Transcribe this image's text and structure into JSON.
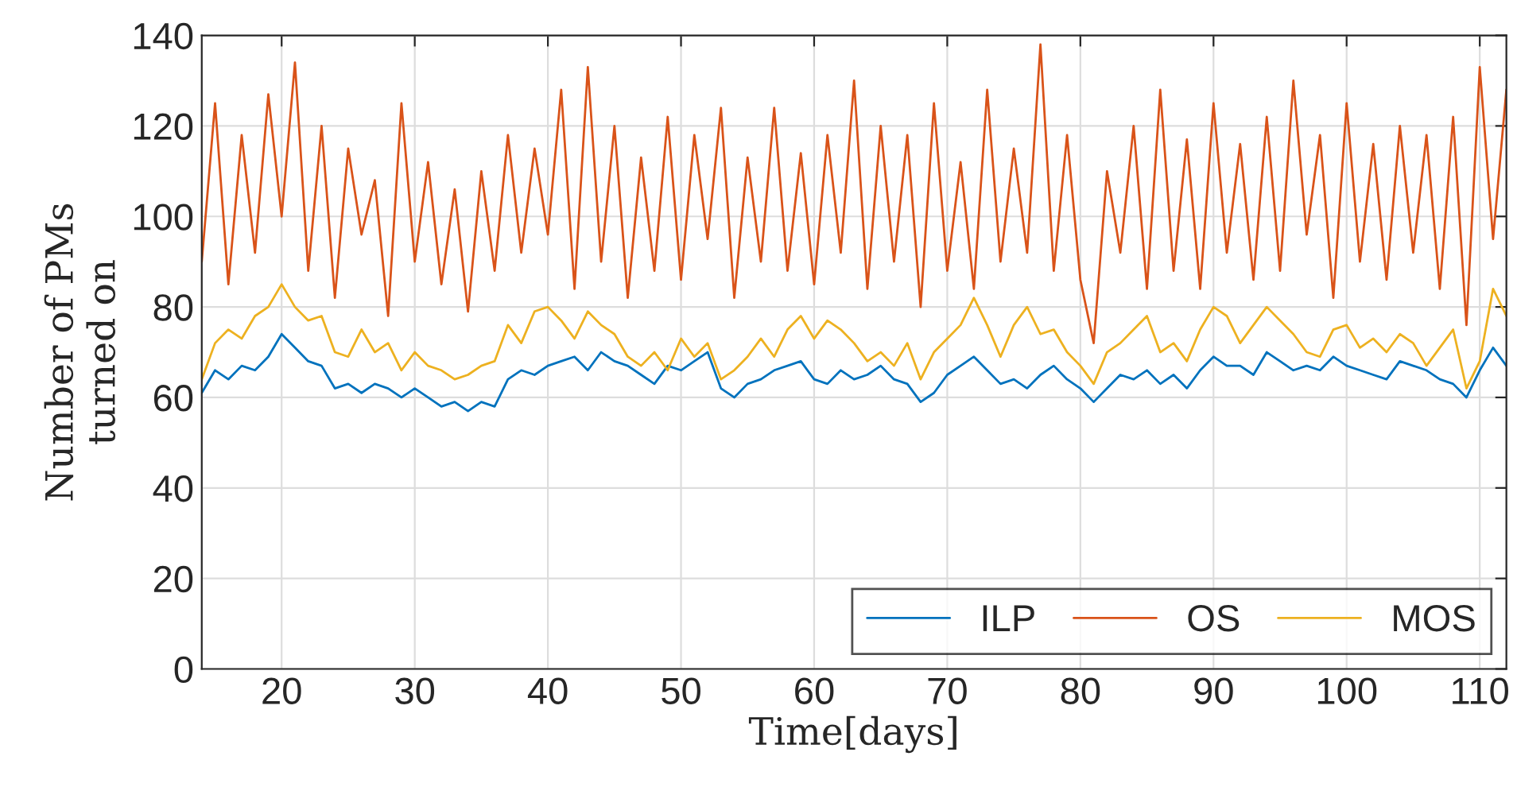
{
  "chart_data": {
    "type": "line",
    "xlabel": "Time[days]",
    "ylabel": "Number of PMs\nturned on",
    "x": [
      14,
      15,
      16,
      17,
      18,
      19,
      20,
      21,
      22,
      23,
      24,
      25,
      26,
      27,
      28,
      29,
      30,
      31,
      32,
      33,
      34,
      35,
      36,
      37,
      38,
      39,
      40,
      41,
      42,
      43,
      44,
      45,
      46,
      47,
      48,
      49,
      50,
      51,
      52,
      53,
      54,
      55,
      56,
      57,
      58,
      59,
      60,
      61,
      62,
      63,
      64,
      65,
      66,
      67,
      68,
      69,
      70,
      71,
      72,
      73,
      74,
      75,
      76,
      77,
      78,
      79,
      80,
      81,
      82,
      83,
      84,
      85,
      86,
      87,
      88,
      89,
      90,
      91,
      92,
      93,
      94,
      95,
      96,
      97,
      98,
      99,
      100,
      101,
      102,
      103,
      104,
      105,
      106,
      107,
      108,
      109,
      110,
      111,
      112
    ],
    "series": [
      {
        "name": "ILP",
        "color": "#0072bd",
        "values": [
          61,
          66,
          64,
          67,
          66,
          69,
          74,
          71,
          68,
          67,
          62,
          63,
          61,
          63,
          62,
          60,
          62,
          60,
          58,
          59,
          57,
          59,
          58,
          64,
          66,
          65,
          67,
          68,
          69,
          66,
          70,
          68,
          67,
          65,
          63,
          67,
          66,
          68,
          70,
          62,
          60,
          63,
          64,
          66,
          67,
          68,
          64,
          63,
          66,
          64,
          65,
          67,
          64,
          63,
          59,
          61,
          65,
          67,
          69,
          66,
          63,
          64,
          62,
          65,
          67,
          64,
          62,
          59,
          62,
          65,
          64,
          66,
          63,
          65,
          62,
          66,
          69,
          67,
          67,
          65,
          70,
          68,
          66,
          67,
          66,
          69,
          67,
          66,
          65,
          64,
          68,
          67,
          66,
          64,
          63,
          60,
          66,
          71,
          67
        ]
      },
      {
        "name": "OS",
        "color": "#d95319",
        "values": [
          90,
          125,
          85,
          118,
          92,
          127,
          100,
          134,
          88,
          120,
          82,
          115,
          96,
          108,
          78,
          125,
          90,
          112,
          85,
          106,
          79,
          110,
          88,
          118,
          92,
          115,
          96,
          128,
          84,
          133,
          90,
          120,
          82,
          113,
          88,
          122,
          86,
          118,
          95,
          124,
          82,
          113,
          90,
          124,
          88,
          114,
          85,
          118,
          92,
          130,
          84,
          120,
          90,
          118,
          80,
          125,
          88,
          112,
          84,
          128,
          90,
          115,
          92,
          138,
          88,
          118,
          86,
          72,
          110,
          92,
          120,
          84,
          128,
          88,
          117,
          84,
          125,
          92,
          116,
          86,
          122,
          88,
          130,
          96,
          118,
          82,
          125,
          90,
          116,
          86,
          120,
          92,
          118,
          84,
          122,
          76,
          133,
          95,
          128
        ]
      },
      {
        "name": "MOS",
        "color": "#edb120",
        "values": [
          64,
          72,
          75,
          73,
          78,
          80,
          85,
          80,
          77,
          78,
          70,
          69,
          75,
          70,
          72,
          66,
          70,
          67,
          66,
          64,
          65,
          67,
          68,
          76,
          72,
          79,
          80,
          77,
          73,
          79,
          76,
          74,
          69,
          67,
          70,
          66,
          73,
          69,
          72,
          64,
          66,
          69,
          73,
          69,
          75,
          78,
          73,
          77,
          75,
          72,
          68,
          70,
          67,
          72,
          64,
          70,
          73,
          76,
          82,
          76,
          69,
          76,
          80,
          74,
          75,
          70,
          67,
          63,
          70,
          72,
          75,
          78,
          70,
          72,
          68,
          75,
          80,
          78,
          72,
          76,
          80,
          77,
          74,
          70,
          69,
          75,
          76,
          71,
          73,
          70,
          74,
          72,
          67,
          71,
          75,
          62,
          68,
          84,
          78
        ]
      }
    ],
    "xlim": [
      14,
      112
    ],
    "ylim": [
      0,
      140
    ],
    "xticks": [
      20,
      30,
      40,
      50,
      60,
      70,
      80,
      90,
      100,
      110
    ],
    "yticks": [
      0,
      20,
      40,
      60,
      80,
      100,
      120,
      140
    ],
    "grid": true,
    "legend": "bottom right",
    "marker": "none",
    "line_style": "solid"
  }
}
